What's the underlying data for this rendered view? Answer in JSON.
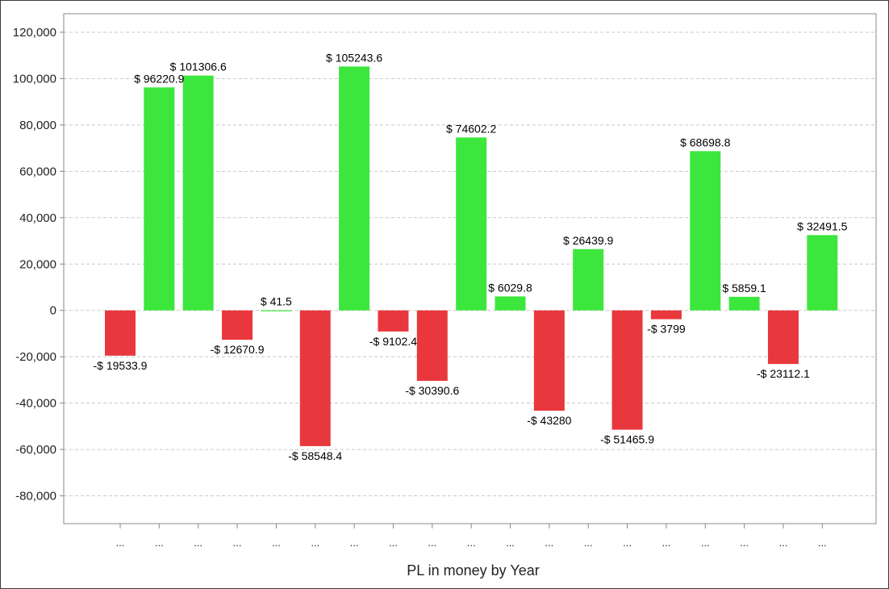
{
  "chart_data": {
    "type": "bar",
    "title": "",
    "xlabel": "PL in money by Year",
    "ylabel": "",
    "ylim": [
      -92000,
      128000
    ],
    "yticks": [
      -80000,
      -60000,
      -40000,
      -20000,
      0,
      20000,
      40000,
      60000,
      80000,
      100000,
      120000
    ],
    "ytick_labels": [
      "-80,000",
      "-60,000",
      "-40,000",
      "-20,000",
      "0",
      "20,000",
      "40,000",
      "60,000",
      "80,000",
      "100,000",
      "120,000"
    ],
    "grid": true,
    "legend": "none",
    "categories": [
      "...",
      "...",
      "...",
      "...",
      "...",
      "...",
      "...",
      "...",
      "...",
      "...",
      "...",
      "...",
      "...",
      "...",
      "...",
      "...",
      "...",
      "...",
      "..."
    ],
    "values": [
      -19533.9,
      96220.9,
      101306.6,
      -12670.9,
      41.5,
      -58548.4,
      105243.6,
      -9102.4,
      -30390.6,
      74602.2,
      6029.8,
      -43280,
      26439.9,
      -51465.9,
      -3799,
      68698.8,
      5859.1,
      -23112.1,
      32491.5
    ],
    "data_labels": [
      "-$ 19533.9",
      "$ 96220.9",
      "$ 101306.6",
      "-$ 12670.9",
      "$ 41.5",
      "-$ 58548.4",
      "$ 105243.6",
      "-$ 9102.4",
      "-$ 30390.6",
      "$ 74602.2",
      "$ 6029.8",
      "-$ 43280",
      "$ 26439.9",
      "-$ 51465.9",
      "-$ 3799",
      "$ 68698.8",
      "$ 5859.1",
      "-$ 23112.1",
      "$ 32491.5"
    ],
    "colors": {
      "positive": "#3ce63c",
      "negative": "#e8383d",
      "grid": "#c8c8c8",
      "axis": "#888888"
    }
  }
}
